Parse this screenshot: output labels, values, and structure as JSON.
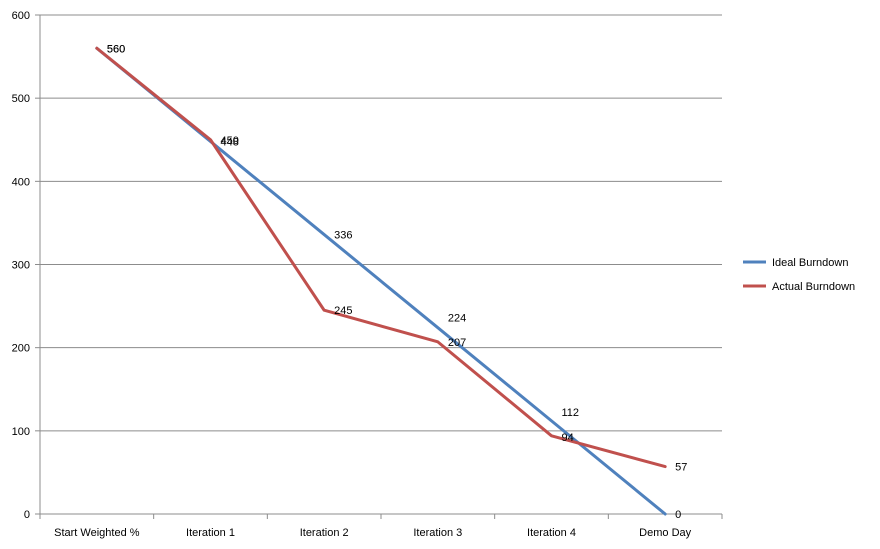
{
  "chart_data": {
    "type": "line",
    "categories": [
      "Start Weighted %",
      "Iteration 1",
      "Iteration 2",
      "Iteration 3",
      "Iteration 4",
      "Demo Day"
    ],
    "series": [
      {
        "name": "Ideal Burndown",
        "values": [
          560,
          448,
          336,
          224,
          112,
          0
        ],
        "color": "#4F81BD"
      },
      {
        "name": "Actual Burndown",
        "values": [
          560,
          450,
          245,
          207,
          94,
          57
        ],
        "color": "#C0504D"
      }
    ],
    "ylim": [
      0,
      600
    ],
    "yticks": [
      0,
      100,
      200,
      300,
      400,
      500,
      600
    ],
    "grid": true,
    "legend": "right",
    "data_labels": true
  }
}
